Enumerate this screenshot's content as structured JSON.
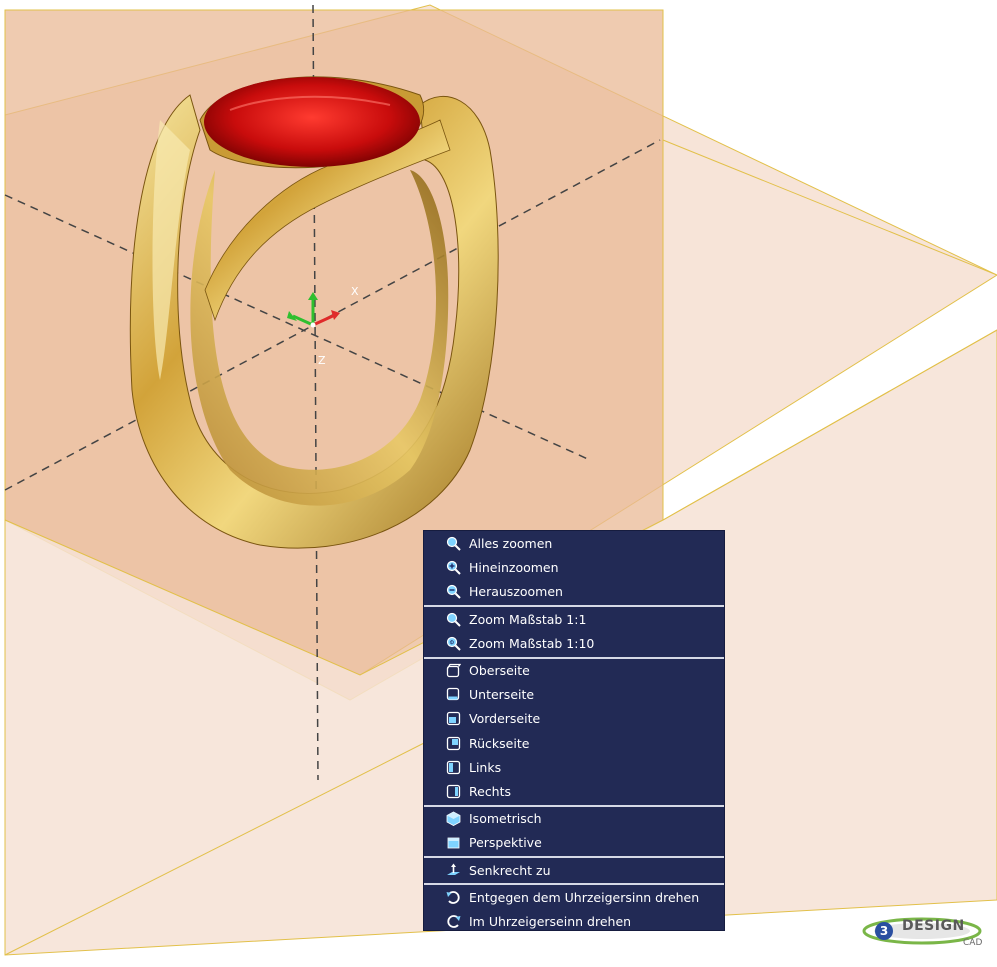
{
  "axes": {
    "x_label": "X",
    "z_label": "Z"
  },
  "context_menu": {
    "groups": [
      {
        "items": [
          {
            "label": "Alles zoomen",
            "icon": "zoom-all-icon"
          },
          {
            "label": "Hineinzoomen",
            "icon": "zoom-in-icon"
          },
          {
            "label": "Herauszoomen",
            "icon": "zoom-out-icon"
          }
        ]
      },
      {
        "items": [
          {
            "label": "Zoom Maßstab 1:1",
            "icon": "zoom-scale-1-1-icon"
          },
          {
            "label": "Zoom Maßstab 1:10",
            "icon": "zoom-scale-1-10-icon"
          }
        ]
      },
      {
        "items": [
          {
            "label": "Oberseite",
            "icon": "top-view-icon"
          },
          {
            "label": "Unterseite",
            "icon": "bottom-view-icon"
          },
          {
            "label": "Vorderseite",
            "icon": "front-view-icon"
          },
          {
            "label": "Rückseite",
            "icon": "back-view-icon"
          },
          {
            "label": "Links",
            "icon": "left-view-icon"
          },
          {
            "label": "Rechts",
            "icon": "right-view-icon"
          }
        ]
      },
      {
        "items": [
          {
            "label": "Isometrisch",
            "icon": "isometric-icon"
          },
          {
            "label": "Perspektive",
            "icon": "perspective-icon"
          }
        ]
      },
      {
        "items": [
          {
            "label": "Senkrecht zu",
            "icon": "perpendicular-icon"
          }
        ]
      },
      {
        "items": [
          {
            "label": "Entgegen dem Uhrzeigersinn drehen",
            "icon": "rotate-ccw-icon"
          },
          {
            "label": "Im Uhrzeigerseinn drehen",
            "icon": "rotate-cw-icon"
          }
        ]
      }
    ]
  },
  "logo": {
    "number": "3",
    "text": "DESIGN",
    "sub": "CAD"
  },
  "colors": {
    "menu_bg": "#222a55",
    "menu_text": "#ffffff",
    "plane_fill": "#e8b898",
    "gold": "#d9b04a",
    "gem": "#c81010"
  }
}
